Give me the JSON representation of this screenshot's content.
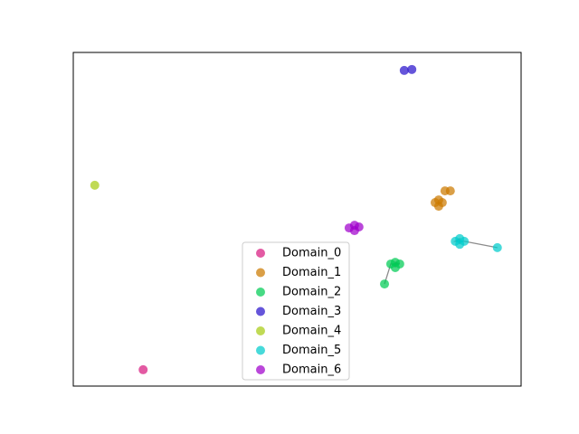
{
  "chart_data": {
    "type": "scatter",
    "xlim": [
      0,
      100
    ],
    "ylim": [
      0,
      100
    ],
    "opacity": 0.72,
    "connector_color": "#8c8c8c",
    "series": [
      {
        "name": "Domain_0",
        "color": "#d81b7f",
        "x": [
          15.6
        ],
        "y": [
          4.9
        ]
      },
      {
        "name": "Domain_1",
        "color": "#cc7a00",
        "x": [
          80.8,
          82.4,
          81.6,
          81.6,
          83.0,
          84.2
        ],
        "y": [
          55.0,
          55.0,
          55.8,
          53.9,
          58.5,
          58.5
        ]
      },
      {
        "name": "Domain_2",
        "color": "#00cc55",
        "connect": true,
        "x": [
          69.5,
          70.9,
          72.9,
          71.9,
          71.9
        ],
        "y": [
          30.6,
          36.6,
          36.6,
          37.1,
          35.5
        ]
      },
      {
        "name": "Domain_3",
        "color": "#2a14cc",
        "x": [
          73.9,
          75.6
        ],
        "y": [
          94.6,
          94.9
        ]
      },
      {
        "name": "Domain_4",
        "color": "#a8cc14",
        "x": [
          4.8
        ],
        "y": [
          60.2
        ]
      },
      {
        "name": "Domain_5",
        "color": "#00cccc",
        "connect": true,
        "x": [
          94.7,
          87.3,
          85.3,
          86.3,
          86.3
        ],
        "y": [
          41.5,
          43.4,
          43.4,
          44.2,
          42.5
        ]
      },
      {
        "name": "Domain_6",
        "color": "#a000cc",
        "x": [
          61.6,
          63.8,
          62.8,
          62.8
        ],
        "y": [
          47.4,
          47.7,
          48.2,
          46.6
        ]
      }
    ]
  }
}
